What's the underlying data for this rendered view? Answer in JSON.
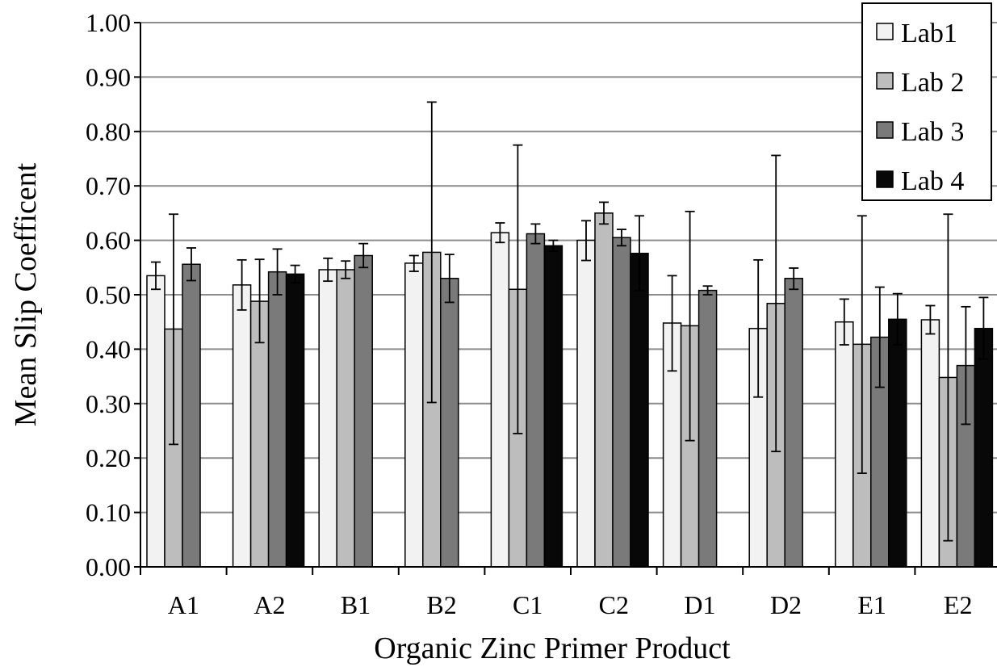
{
  "chart_data": {
    "type": "bar",
    "title": "",
    "xlabel": "Organic Zinc Primer Product",
    "ylabel": "Mean Slip Coefficent",
    "ylim": [
      0,
      1.0
    ],
    "yticks": [
      "0.00",
      "0.10",
      "0.20",
      "0.30",
      "0.40",
      "0.50",
      "0.60",
      "0.70",
      "0.80",
      "0.90",
      "1.00"
    ],
    "grid": true,
    "legend_position": "top-right",
    "categories": [
      "A1",
      "A2",
      "B1",
      "B2",
      "C1",
      "C2",
      "D1",
      "D2",
      "E1",
      "E2"
    ],
    "series": [
      {
        "name": "Lab1",
        "color": "#f2f2f2",
        "values": [
          0.535,
          0.518,
          0.546,
          0.558,
          0.614,
          0.6,
          0.448,
          0.438,
          0.45,
          0.454
        ],
        "error_low": [
          0.51,
          0.472,
          0.525,
          0.543,
          0.596,
          0.563,
          0.36,
          0.312,
          0.408,
          0.428
        ],
        "error_high": [
          0.56,
          0.564,
          0.567,
          0.572,
          0.632,
          0.636,
          0.535,
          0.564,
          0.492,
          0.48
        ]
      },
      {
        "name": "Lab 2",
        "color": "#bdbdbd",
        "values": [
          0.437,
          0.488,
          0.546,
          0.578,
          0.51,
          0.65,
          0.443,
          0.484,
          0.409,
          0.348
        ],
        "error_low": [
          0.225,
          0.412,
          0.53,
          0.302,
          0.245,
          0.63,
          0.232,
          0.212,
          0.172,
          0.048
        ],
        "error_high": [
          0.648,
          0.565,
          0.562,
          0.854,
          0.775,
          0.67,
          0.653,
          0.756,
          0.645,
          0.648
        ]
      },
      {
        "name": "Lab 3",
        "color": "#7a7a7a",
        "values": [
          0.556,
          0.542,
          0.572,
          0.53,
          0.612,
          0.605,
          0.508,
          0.53,
          0.422,
          0.37
        ],
        "error_low": [
          0.526,
          0.5,
          0.55,
          0.486,
          0.594,
          0.59,
          0.5,
          0.51,
          0.33,
          0.262
        ],
        "error_high": [
          0.586,
          0.584,
          0.594,
          0.574,
          0.63,
          0.62,
          0.516,
          0.549,
          0.514,
          0.478
        ]
      },
      {
        "name": "Lab 4",
        "color": "#080808",
        "values": [
          null,
          0.538,
          null,
          null,
          0.59,
          0.576,
          null,
          null,
          0.455,
          0.438
        ],
        "error_low": [
          null,
          0.522,
          null,
          null,
          0.58,
          0.508,
          null,
          null,
          0.408,
          0.382
        ],
        "error_high": [
          null,
          0.554,
          null,
          null,
          0.6,
          0.645,
          null,
          null,
          0.502,
          0.495
        ]
      }
    ]
  }
}
